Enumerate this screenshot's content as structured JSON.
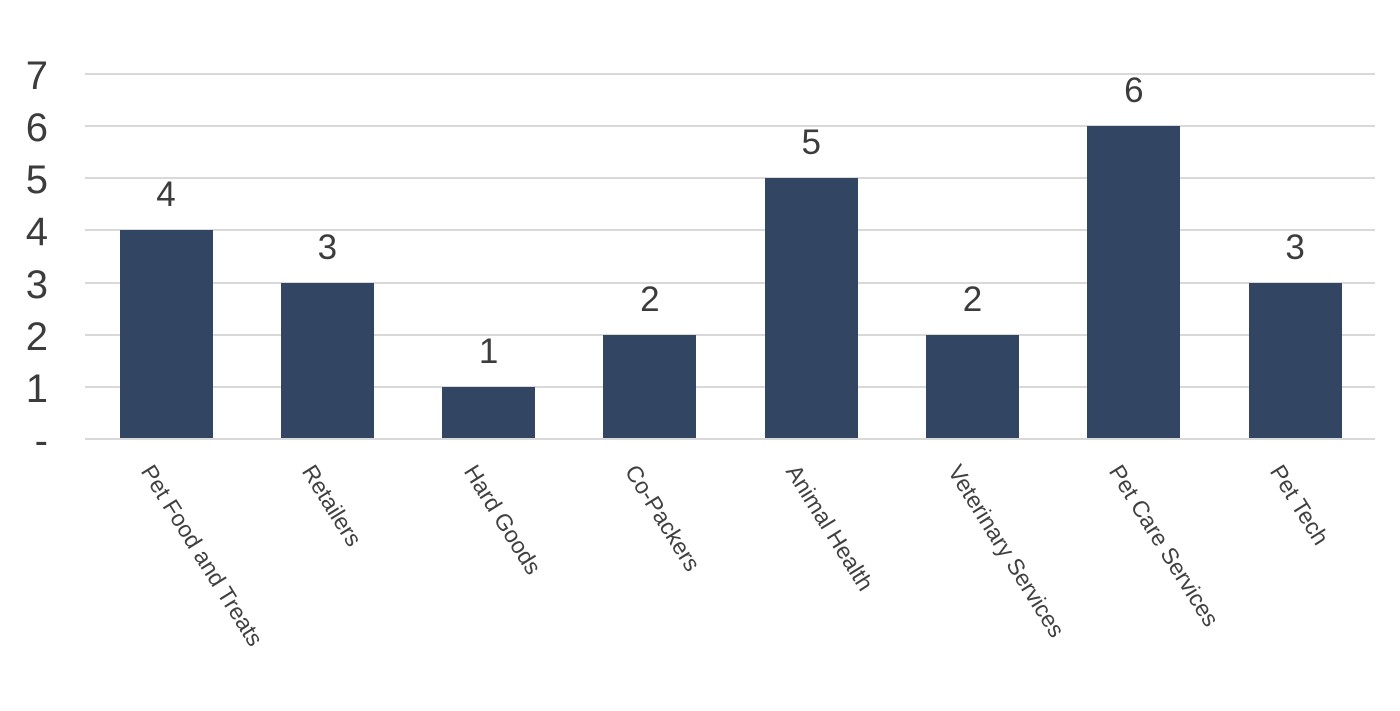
{
  "chart_data": {
    "type": "bar",
    "title": "",
    "xlabel": "",
    "ylabel": "",
    "categories": [
      "Pet Food and Treats",
      "Retailers",
      "Hard Goods",
      "Co-Packers",
      "Animal Health",
      "Veterinary Services",
      "Pet Care Services",
      "Pet Tech"
    ],
    "values": [
      4,
      3,
      1,
      2,
      5,
      2,
      6,
      3
    ],
    "data_labels": [
      "4",
      "3",
      "1",
      "2",
      "5",
      "2",
      "6",
      "3"
    ],
    "ylim": [
      0,
      7
    ],
    "y_tick_values": [
      0,
      1,
      2,
      3,
      4,
      5,
      6,
      7
    ],
    "y_tick_labels": [
      "-",
      "1",
      "2",
      "3",
      "4",
      "5",
      "6",
      "7"
    ],
    "grid": true,
    "legend": "none",
    "colors": {
      "bar": "#324563",
      "gridline": "#D9D9D9",
      "axis_line": "#D9D9D9",
      "tick_text": "#3C3C3C",
      "data_label_text": "#3C3C3C",
      "category_text": "#404040",
      "background": "#FFFFFF"
    }
  }
}
